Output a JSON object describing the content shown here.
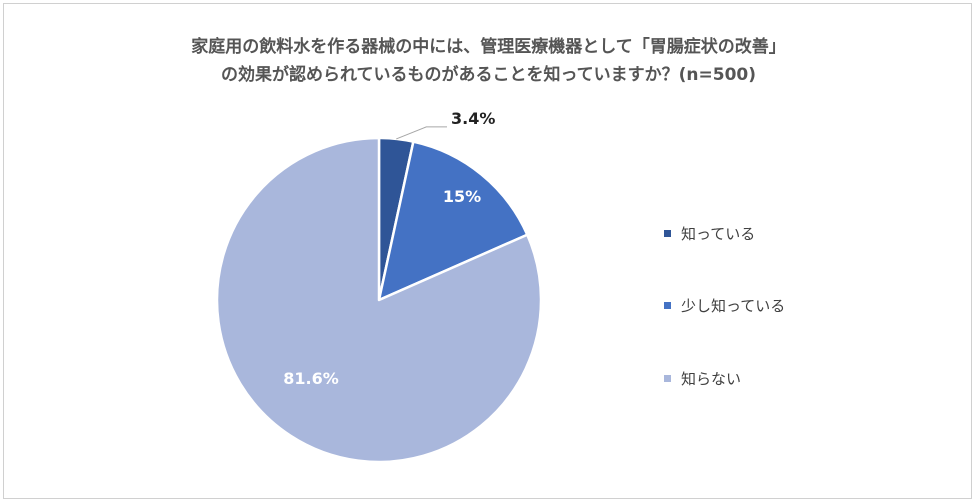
{
  "chart_data": {
    "type": "pie",
    "title_lines": [
      "家庭用の飲料水を作る器械の中には、管理医療機器として「胃腸症状の改善」",
      "の効果が認められているものがあることを知っていますか？(n=500)"
    ],
    "categories": [
      "知っている",
      "少し知っている",
      "知らない"
    ],
    "values": [
      3.4,
      15,
      81.6
    ],
    "value_labels": [
      "3.4%",
      "15%",
      "81.6%"
    ],
    "colors": [
      "#2f5597",
      "#4472c4",
      "#a9b7dc"
    ],
    "legend_position": "right",
    "label_colors": [
      "#222222",
      "#ffffff",
      "#ffffff"
    ]
  }
}
